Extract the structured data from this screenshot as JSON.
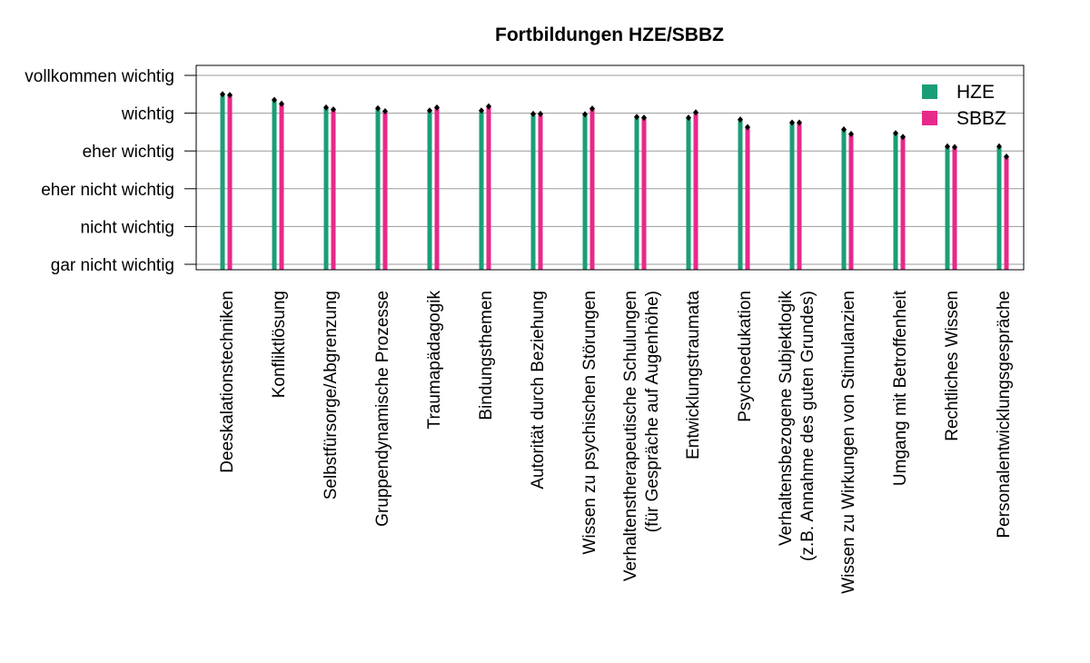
{
  "chart_data": {
    "type": "bar",
    "title": "Fortbildungen HZE/SBBZ",
    "xlabel": "",
    "ylabel": "",
    "y_tick_labels": [
      "gar nicht wichtig",
      "nicht wichtig",
      "eher nicht wichtig",
      "eher wichtig",
      "wichtig",
      "vollkommen wichtig"
    ],
    "y_tick_values": [
      1,
      2,
      3,
      4,
      5,
      6
    ],
    "ylim": [
      0.9,
      6.25
    ],
    "grid": "horizontal",
    "legend_position": "top-right",
    "categories": [
      [
        "Deeskalationstechniken"
      ],
      [
        "Konfliktlösung"
      ],
      [
        "Selbstfürsorge/Abgrenzung"
      ],
      [
        "Gruppendynamische Prozesse"
      ],
      [
        "Traumapädagogik"
      ],
      [
        "Bindungsthemen"
      ],
      [
        "Autorität durch Beziehung"
      ],
      [
        "Wissen zu psychischen Störungen"
      ],
      [
        "Verhaltenstherapeutische Schulungen",
        "(für Gespräche auf Augenhöhe)"
      ],
      [
        "Entwicklungstraumata"
      ],
      [
        "Psychoedukation"
      ],
      [
        "Verhaltensbezogene Subjektlogik",
        "(z.B. Annahme des guten Grundes)"
      ],
      [
        "Wissen zu Wirkungen von Stimulanzien"
      ],
      [
        "Umgang mit Betroffenheit"
      ],
      [
        "Rechtliches Wissen"
      ],
      [
        "Personalentwicklungsgespräche"
      ]
    ],
    "series": [
      {
        "name": "HZE",
        "color": "#1b9e77",
        "values": [
          5.5,
          5.35,
          5.15,
          5.13,
          5.07,
          5.07,
          4.98,
          4.97,
          4.9,
          4.88,
          4.83,
          4.75,
          4.57,
          4.47,
          4.12,
          4.12
        ]
      },
      {
        "name": "SBBZ",
        "color": "#e7298a",
        "values": [
          5.48,
          5.25,
          5.1,
          5.05,
          5.15,
          5.18,
          4.98,
          5.12,
          4.88,
          5.02,
          4.63,
          4.75,
          4.45,
          4.37,
          4.1,
          3.85
        ]
      }
    ]
  }
}
